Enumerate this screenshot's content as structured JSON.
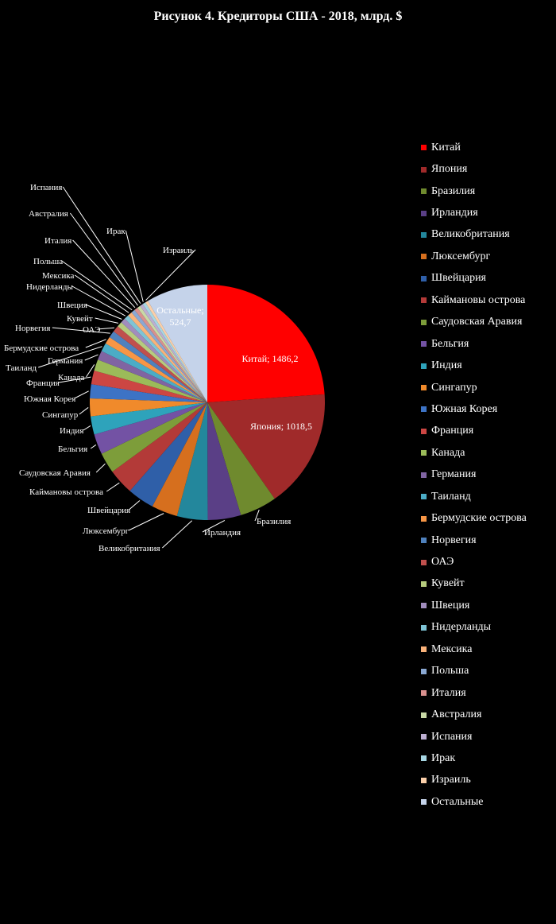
{
  "chart_data": {
    "type": "pie",
    "title": "Рисунок 4. Кредиторы США - 2018, млрд. $",
    "slices": [
      {
        "name": "Китай",
        "value": 1486.2,
        "color": "#ff0000",
        "label": "Китай; 1486,2"
      },
      {
        "name": "Япония",
        "value": 1018.5,
        "color": "#a02a2a",
        "label": "Япония; 1018,5"
      },
      {
        "name": "Бразилия",
        "value": 316.8,
        "color": "#6f8a2e",
        "label": "Бразилия"
      },
      {
        "name": "Ирландия",
        "value": 283.6,
        "color": "#5a3f86",
        "label": "Ирландия"
      },
      {
        "name": "Великобритания",
        "value": 262.1,
        "color": "#23879c",
        "label": "Великобритания"
      },
      {
        "name": "Люксембург",
        "value": 223.1,
        "color": "#d66f1e",
        "label": "Люксембург"
      },
      {
        "name": "Швейцария",
        "value": 229.9,
        "color": "#2f5fa8",
        "label": "Швейцария"
      },
      {
        "name": "Каймановы острова",
        "value": 219.1,
        "color": "#b33a38",
        "label": "Каймановы острова"
      },
      {
        "name": "Саудовская Аравия",
        "value": 176.1,
        "color": "#7d9d3a",
        "label": "Саудовская Аравия"
      },
      {
        "name": "Бельгия",
        "value": 173.9,
        "color": "#7352a4",
        "label": "Бельгия"
      },
      {
        "name": "Индия",
        "value": 155.1,
        "color": "#2ea3bb",
        "label": "Индия"
      },
      {
        "name": "Сингапур",
        "value": 151.4,
        "color": "#f08a2b",
        "label": "Сингапур"
      },
      {
        "name": "Южная Корея",
        "value": 120.7,
        "color": "#3d73c5",
        "label": "Южная Корея"
      },
      {
        "name": "Франция",
        "value": 116.6,
        "color": "#cc4643",
        "label": "Франция"
      },
      {
        "name": "Канада",
        "value": 97.5,
        "color": "#9bbb59",
        "label": "Канада"
      },
      {
        "name": "Германия",
        "value": 77.8,
        "color": "#8064a2",
        "label": "Германия"
      },
      {
        "name": "Таиланд",
        "value": 72.9,
        "color": "#4bacc6",
        "label": "Таиланд"
      },
      {
        "name": "Бермудские острова",
        "value": 62.7,
        "color": "#f79646",
        "label": "Бермудские острова"
      },
      {
        "name": "Норвегия",
        "value": 59.0,
        "color": "#4f81bd",
        "label": "Норвегия"
      },
      {
        "name": "ОАЭ",
        "value": 55.9,
        "color": "#c0504d",
        "label": "ОАЭ"
      },
      {
        "name": "Кувейт",
        "value": 45.0,
        "color": "#b6cc7e",
        "label": "Кувейт"
      },
      {
        "name": "Швеция",
        "value": 42.3,
        "color": "#a18dbd",
        "label": "Швеция"
      },
      {
        "name": "Нидерланды",
        "value": 39.0,
        "color": "#7fc4d6",
        "label": "Нидерланды"
      },
      {
        "name": "Мексика",
        "value": 38.5,
        "color": "#f9b27a",
        "label": "Мексика"
      },
      {
        "name": "Польша",
        "value": 32.3,
        "color": "#8aa8d3",
        "label": "Польша"
      },
      {
        "name": "Италия",
        "value": 30.8,
        "color": "#d9908e",
        "label": "Италия"
      },
      {
        "name": "Австралия",
        "value": 27.7,
        "color": "#c9d9a6",
        "label": "Австралия"
      },
      {
        "name": "Испания",
        "value": 27.0,
        "color": "#bcaed1",
        "label": "Испания"
      },
      {
        "name": "Ирак",
        "value": 26.0,
        "color": "#a7d6e3",
        "label": "Ирак"
      },
      {
        "name": "Израиль",
        "value": 24.6,
        "color": "#fbcfa9",
        "label": "Израиль"
      },
      {
        "name": "Остальные",
        "value": 524.7,
        "color": "#c5d3ea",
        "label": "Остальные; 524,7"
      }
    ],
    "legend_position": "right"
  }
}
